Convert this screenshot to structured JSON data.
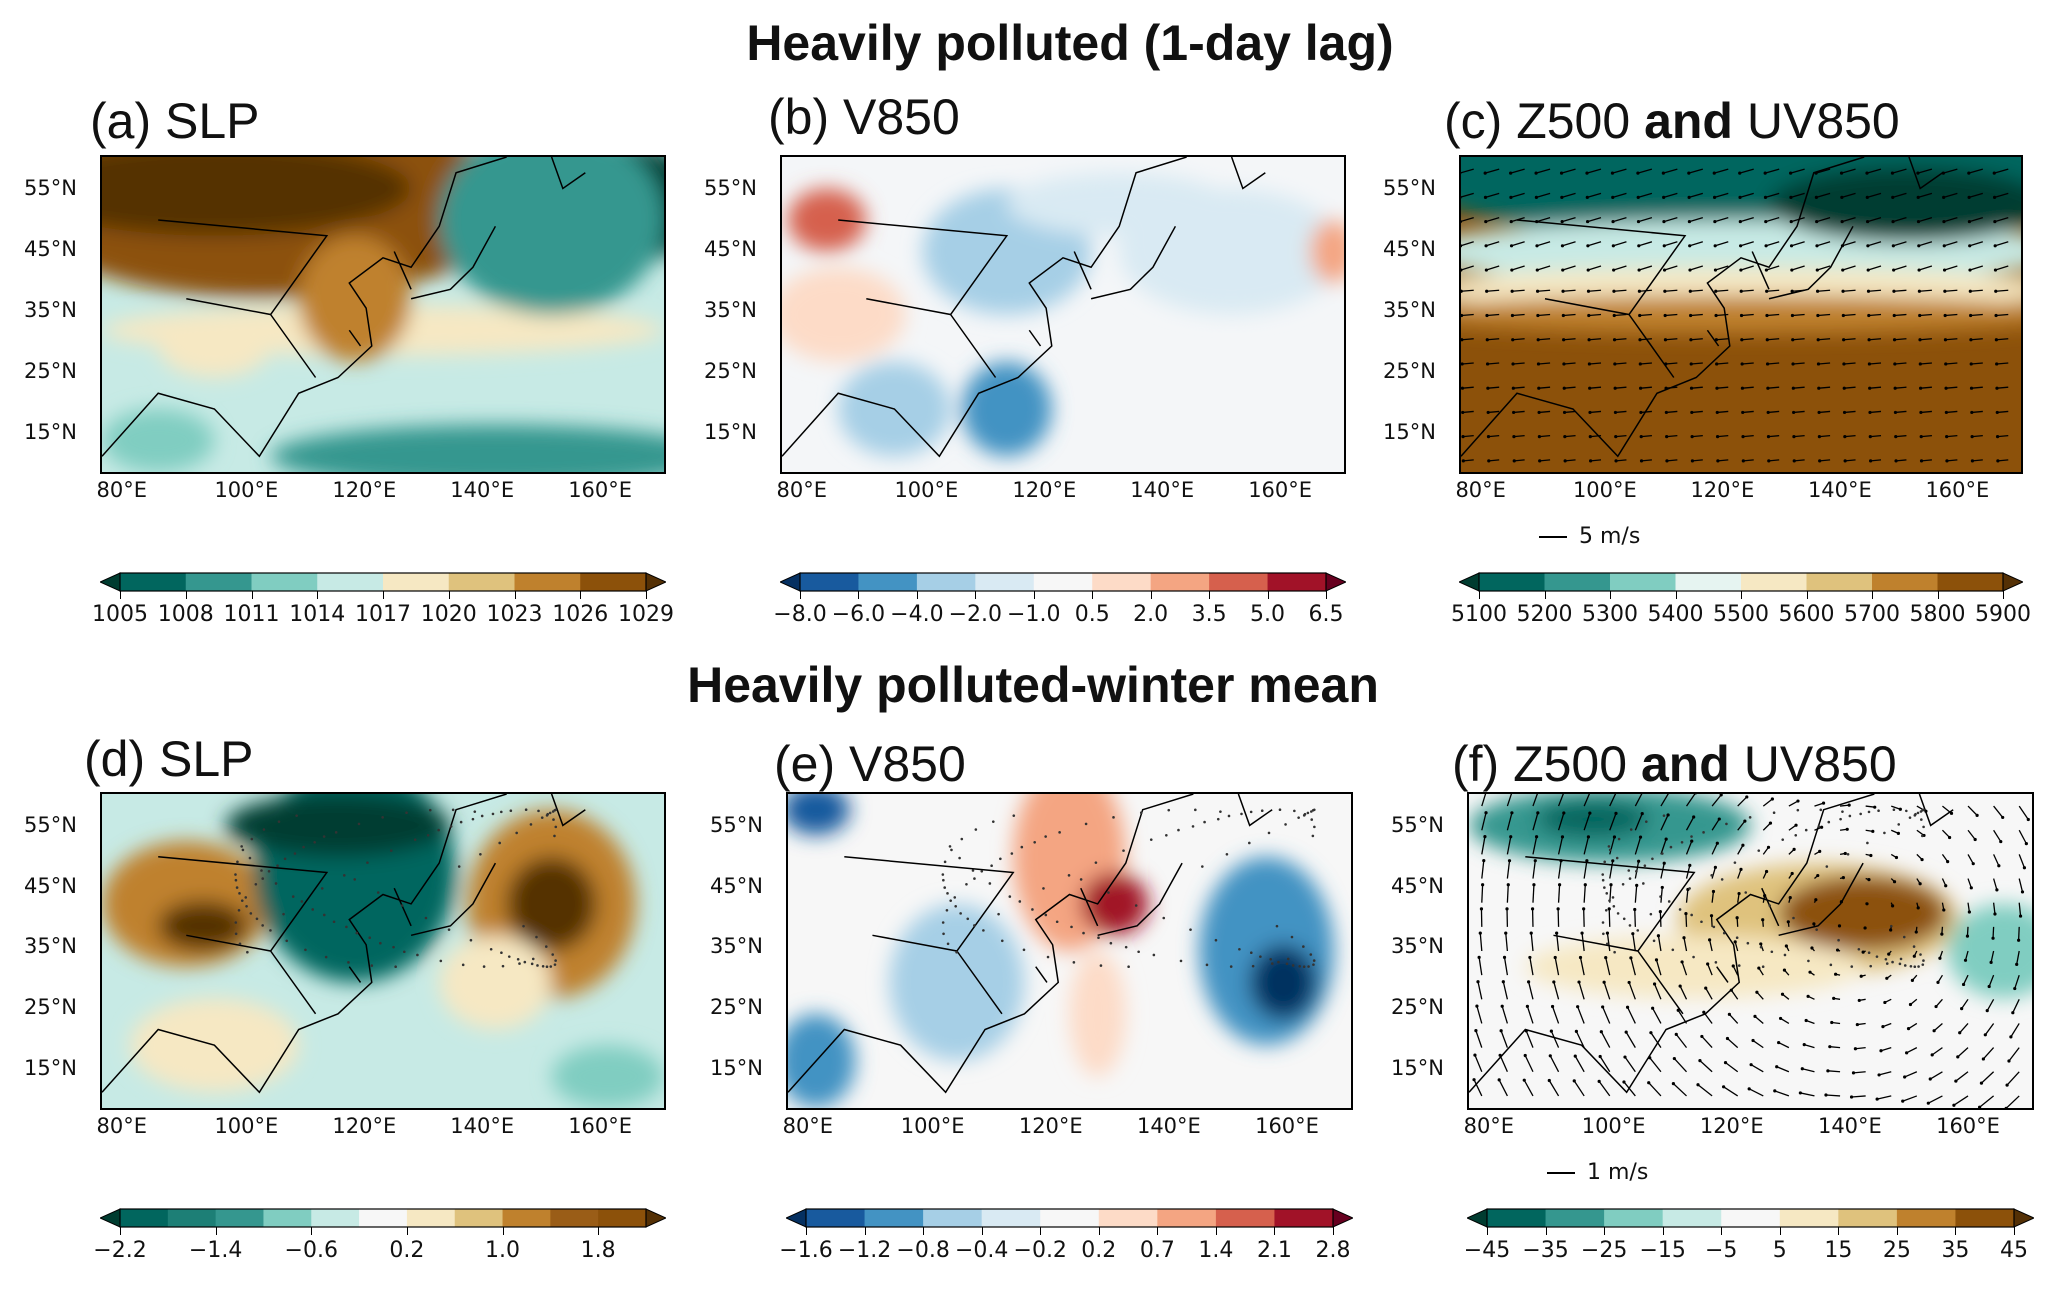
{
  "titles": {
    "top": "Heavily polluted (1-day lag)",
    "bottom": "Heavily polluted-winter mean"
  },
  "chart_data": [
    {
      "type": "heatmap",
      "id": "a",
      "label": "(a) SLP",
      "variable": "SLP",
      "lat_ticks": [
        "55°N",
        "45°N",
        "35°N",
        "25°N",
        "15°N"
      ],
      "lon_ticks": [
        "80°E",
        "100°E",
        "120°E",
        "140°E",
        "160°E"
      ],
      "colorbar": {
        "ticks": [
          "1005",
          "1008",
          "1011",
          "1014",
          "1017",
          "1020",
          "1023",
          "1026",
          "1029"
        ],
        "tick_step": 1,
        "colors": [
          "#01665e",
          "#35978f",
          "#80cdc1",
          "#c7eae5",
          "#f6e8c3",
          "#dfc27d",
          "#bf812d",
          "#8c510a"
        ],
        "ends": [
          "#003c30",
          "#543005"
        ]
      }
    },
    {
      "type": "heatmap",
      "id": "b",
      "label": "(b) V850",
      "variable": "V850",
      "lat_ticks": [
        "55°N",
        "45°N",
        "35°N",
        "25°N",
        "15°N"
      ],
      "lon_ticks": [
        "80°E",
        "100°E",
        "120°E",
        "140°E",
        "160°E"
      ],
      "colorbar": {
        "ticks": [
          "−8.0",
          "−6.0",
          "−4.0",
          "−2.0",
          "−1.0",
          "0.5",
          "2.0",
          "3.5",
          "5.0",
          "6.5"
        ],
        "tick_step": 1,
        "colors": [
          "#185a9e",
          "#4393c3",
          "#a6cfe6",
          "#d9eaf3",
          "#f7f7f7",
          "#fddbc7",
          "#f4a582",
          "#d6604d",
          "#a11228"
        ],
        "ends": [
          "#053061",
          "#67001f"
        ]
      }
    },
    {
      "type": "heatmap",
      "id": "c",
      "label": "(c) Z500 and UV850",
      "variable": "Z500",
      "vector_ref": "5 m/s",
      "lat_ticks": [
        "55°N",
        "45°N",
        "35°N",
        "25°N",
        "15°N"
      ],
      "lon_ticks": [
        "80°E",
        "100°E",
        "120°E",
        "140°E",
        "160°E"
      ],
      "colorbar": {
        "ticks": [
          "5100",
          "5200",
          "5300",
          "5400",
          "5500",
          "5600",
          "5700",
          "5800",
          "5900"
        ],
        "tick_step": 1,
        "colors": [
          "#01665e",
          "#35978f",
          "#80cdc1",
          "#e6f4f1",
          "#f6e8c3",
          "#dfc27d",
          "#bf812d",
          "#8c510a"
        ],
        "ends": [
          "#003c30",
          "#543005"
        ]
      }
    },
    {
      "type": "heatmap",
      "id": "d",
      "label": "(d) SLP",
      "variable": "SLP anomaly",
      "lat_ticks": [
        "55°N",
        "45°N",
        "35°N",
        "25°N",
        "15°N"
      ],
      "lon_ticks": [
        "80°E",
        "100°E",
        "120°E",
        "140°E",
        "160°E"
      ],
      "colorbar": {
        "ticks": [
          "−2.2",
          "−1.4",
          "−0.6",
          "0.2",
          "1.0",
          "1.8"
        ],
        "tick_step": 2,
        "colors": [
          "#01665e",
          "#1d7f76",
          "#35978f",
          "#80cdc1",
          "#c7eae5",
          "#f7f7f7",
          "#f6e8c3",
          "#dfc27d",
          "#bf812d",
          "#9a5d17",
          "#8c510a"
        ],
        "ends": [
          "#003c30",
          "#543005"
        ]
      }
    },
    {
      "type": "heatmap",
      "id": "e",
      "label": "(e) V850",
      "variable": "V850 anomaly",
      "lat_ticks": [
        "55°N",
        "45°N",
        "35°N",
        "25°N",
        "15°N"
      ],
      "lon_ticks": [
        "80°E",
        "100°E",
        "120°E",
        "140°E",
        "160°E"
      ],
      "colorbar": {
        "ticks": [
          "−1.6",
          "−1.2",
          "−0.8",
          "−0.4",
          "−0.2",
          "0.2",
          "0.7",
          "1.4",
          "2.1",
          "2.8"
        ],
        "tick_step": 1,
        "colors": [
          "#185a9e",
          "#4393c3",
          "#a6cfe6",
          "#d9eaf3",
          "#f7f7f7",
          "#fddbc7",
          "#f4a582",
          "#d6604d",
          "#a11228"
        ],
        "ends": [
          "#053061",
          "#67001f"
        ]
      }
    },
    {
      "type": "heatmap",
      "id": "f",
      "label": "(f) Z500 and UV850",
      "variable": "Z500 anomaly",
      "vector_ref": "1 m/s",
      "lat_ticks": [
        "55°N",
        "45°N",
        "35°N",
        "25°N",
        "15°N"
      ],
      "lon_ticks": [
        "80°E",
        "100°E",
        "120°E",
        "140°E",
        "160°E"
      ],
      "colorbar": {
        "ticks": [
          "−45",
          "−35",
          "−25",
          "−15",
          "−5",
          "5",
          "15",
          "25",
          "35",
          "45"
        ],
        "tick_step": 1,
        "colors": [
          "#01665e",
          "#35978f",
          "#80cdc1",
          "#c7eae5",
          "#f7f7f7",
          "#f6e8c3",
          "#dfc27d",
          "#bf812d",
          "#8c510a"
        ],
        "ends": [
          "#003c30",
          "#543005"
        ]
      }
    }
  ]
}
